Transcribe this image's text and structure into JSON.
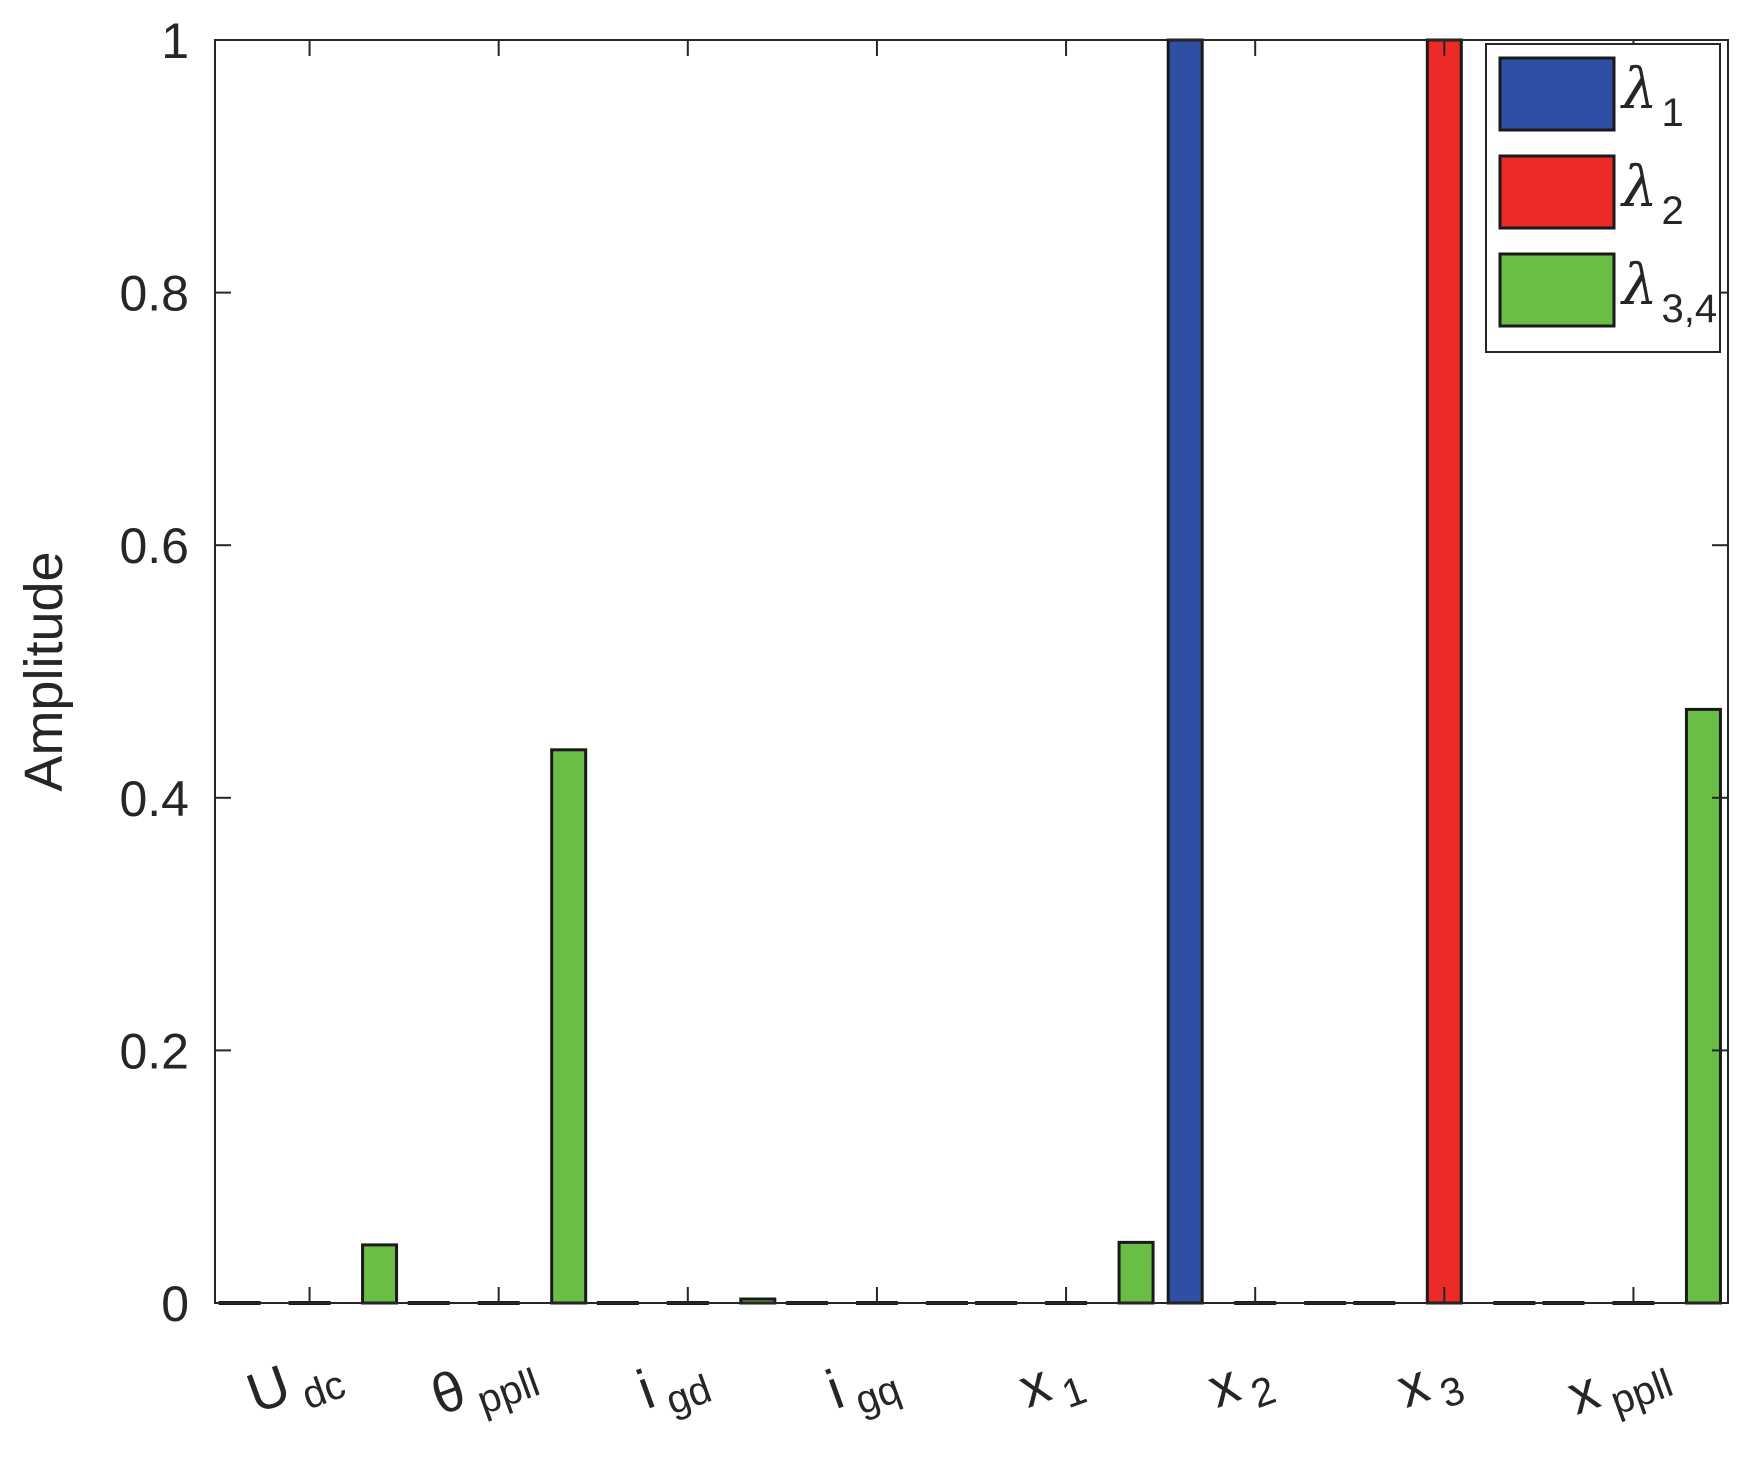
{
  "chart_data": {
    "type": "bar",
    "ylabel": "Amplitude",
    "ylim": [
      0,
      1
    ],
    "yticks": [
      "0",
      "0.2",
      "0.4",
      "0.6",
      "0.8",
      "1"
    ],
    "grid": false,
    "legend_position": "top-right",
    "categories": [
      {
        "main": "U",
        "sub": "dc"
      },
      {
        "main": "θ",
        "sub": "ppll"
      },
      {
        "main": "i",
        "sub": "gd"
      },
      {
        "main": "i",
        "sub": "gq"
      },
      {
        "main": "x",
        "sub": "1"
      },
      {
        "main": "x",
        "sub": "2"
      },
      {
        "main": "x",
        "sub": "3"
      },
      {
        "main": "x",
        "sub": "ppll"
      }
    ],
    "series": [
      {
        "name": "λ1",
        "name_main": "λ",
        "name_sub": "1",
        "color": "#2e4fa3",
        "values": [
          0,
          0,
          0,
          0,
          0,
          1,
          0,
          0
        ]
      },
      {
        "name": "λ2",
        "name_main": "λ",
        "name_sub": "2",
        "color": "#ec2a27",
        "values": [
          0,
          0,
          0,
          0,
          0,
          0,
          1,
          0
        ]
      },
      {
        "name": "λ3,4",
        "name_main": "λ",
        "name_sub": "3,4",
        "color": "#6bbe45",
        "values": [
          0.046,
          0.438,
          0.003,
          0,
          0.048,
          0,
          0,
          0.47
        ]
      }
    ],
    "extra_bar_order": "three bars per category: λ1, λ2, λ3,4 (zero-height bars drawn as flat dashes)"
  }
}
